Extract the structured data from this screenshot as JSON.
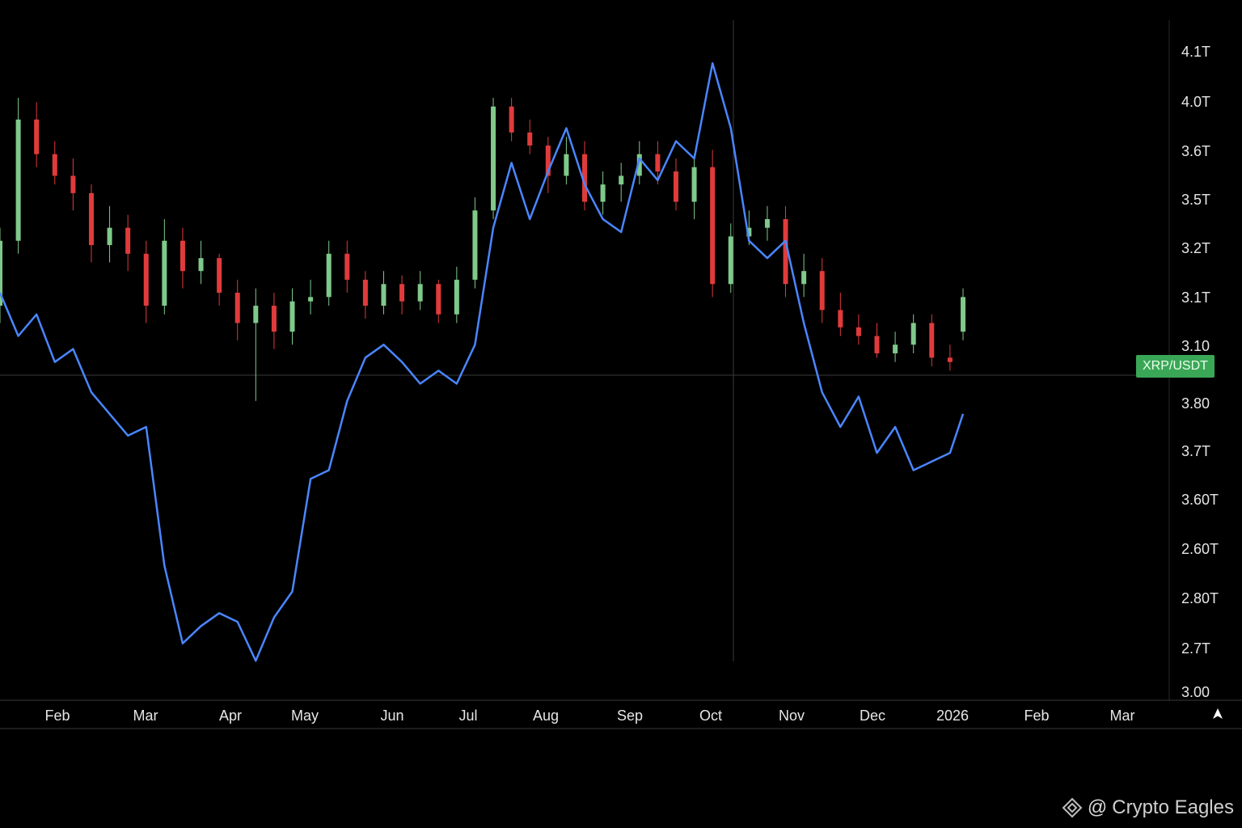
{
  "chart_data": {
    "type": "candlestick+line",
    "y_ticks": [
      "4.1T",
      "4.0T",
      "3.6T",
      "3.5T",
      "3.2T",
      "3.1T",
      "3.10",
      "3.80",
      "3.7T",
      "3.60T",
      "2.60T",
      "2.80T",
      "2.7T",
      "3.00"
    ],
    "x_ticks": [
      "Feb",
      "Mar",
      "Apr",
      "May",
      "Jun",
      "Jul",
      "Aug",
      "Sep",
      "Oct",
      "Nov",
      "Dec",
      "2026",
      "Feb",
      "Mar"
    ],
    "price_label": "XRP/USDT",
    "colors": {
      "background": "#000000",
      "up": "#7fc98a",
      "down": "#e03b3b",
      "line": "#4a86ff",
      "axis": "#555555",
      "price_tag": "#3aa757"
    },
    "grid": false,
    "line_series": {
      "dates": [
        "2025-01-01",
        "2025-01-08",
        "2025-01-15",
        "2025-01-22",
        "2025-01-29",
        "2025-02-05",
        "2025-02-12",
        "2025-02-19",
        "2025-02-26",
        "2025-03-05",
        "2025-03-12",
        "2025-03-19",
        "2025-03-26",
        "2025-04-02",
        "2025-04-09",
        "2025-04-16",
        "2025-04-23",
        "2025-04-30",
        "2025-05-07",
        "2025-05-14",
        "2025-05-21",
        "2025-05-28",
        "2025-06-04",
        "2025-06-11",
        "2025-06-18",
        "2025-06-25",
        "2025-07-02",
        "2025-07-09",
        "2025-07-16",
        "2025-07-23",
        "2025-07-30",
        "2025-08-06",
        "2025-08-13",
        "2025-08-20",
        "2025-08-27",
        "2025-09-03",
        "2025-09-10",
        "2025-09-17",
        "2025-09-24",
        "2025-10-01",
        "2025-10-08",
        "2025-10-15",
        "2025-10-22",
        "2025-10-29",
        "2025-11-05",
        "2025-11-12",
        "2025-11-19",
        "2025-11-26",
        "2025-12-03",
        "2025-12-10",
        "2025-12-17",
        "2025-12-24",
        "2025-12-31",
        "2026-01-05"
      ],
      "values": [
        3.43,
        3.33,
        3.38,
        3.27,
        3.3,
        3.2,
        3.15,
        3.1,
        3.12,
        2.8,
        2.62,
        2.66,
        2.69,
        2.67,
        2.58,
        2.68,
        2.74,
        3.0,
        3.02,
        3.18,
        3.28,
        3.31,
        3.27,
        3.22,
        3.25,
        3.22,
        3.31,
        3.58,
        3.73,
        3.6,
        3.71,
        3.81,
        3.68,
        3.6,
        3.57,
        3.74,
        3.69,
        3.78,
        3.74,
        3.96,
        3.81,
        3.55,
        3.51,
        3.55,
        3.36,
        3.2,
        3.12,
        3.19,
        3.06,
        3.12,
        3.02,
        3.04,
        3.06,
        3.15
      ]
    },
    "candle_series": {
      "dates": [
        "2025-01-01",
        "2025-01-08",
        "2025-01-15",
        "2025-01-22",
        "2025-01-29",
        "2025-02-05",
        "2025-02-12",
        "2025-02-19",
        "2025-02-26",
        "2025-03-05",
        "2025-03-12",
        "2025-03-19",
        "2025-03-26",
        "2025-04-02",
        "2025-04-09",
        "2025-04-16",
        "2025-04-23",
        "2025-04-30",
        "2025-05-07",
        "2025-05-14",
        "2025-05-21",
        "2025-05-28",
        "2025-06-04",
        "2025-06-11",
        "2025-06-18",
        "2025-06-25",
        "2025-07-02",
        "2025-07-09",
        "2025-07-16",
        "2025-07-23",
        "2025-07-30",
        "2025-08-06",
        "2025-08-13",
        "2025-08-20",
        "2025-08-27",
        "2025-09-03",
        "2025-09-10",
        "2025-09-17",
        "2025-09-24",
        "2025-10-01",
        "2025-10-08",
        "2025-10-15",
        "2025-10-22",
        "2025-10-29",
        "2025-11-05",
        "2025-11-12",
        "2025-11-19",
        "2025-11-26",
        "2025-12-03",
        "2025-12-10",
        "2025-12-17",
        "2025-12-24",
        "2025-12-31",
        "2026-01-05"
      ],
      "open": [
        3.4,
        3.55,
        3.83,
        3.75,
        3.7,
        3.66,
        3.54,
        3.58,
        3.52,
        3.4,
        3.55,
        3.48,
        3.51,
        3.43,
        3.36,
        3.4,
        3.34,
        3.41,
        3.42,
        3.52,
        3.46,
        3.4,
        3.45,
        3.41,
        3.45,
        3.38,
        3.46,
        3.62,
        3.86,
        3.8,
        3.77,
        3.7,
        3.75,
        3.64,
        3.68,
        3.7,
        3.75,
        3.71,
        3.64,
        3.72,
        3.45,
        3.56,
        3.58,
        3.6,
        3.45,
        3.48,
        3.39,
        3.35,
        3.33,
        3.29,
        3.31,
        3.36,
        3.28,
        3.34
      ],
      "close": [
        3.55,
        3.83,
        3.75,
        3.7,
        3.66,
        3.54,
        3.58,
        3.52,
        3.4,
        3.55,
        3.48,
        3.51,
        3.43,
        3.36,
        3.4,
        3.34,
        3.41,
        3.42,
        3.52,
        3.46,
        3.4,
        3.45,
        3.41,
        3.45,
        3.38,
        3.46,
        3.62,
        3.86,
        3.8,
        3.77,
        3.7,
        3.75,
        3.64,
        3.68,
        3.7,
        3.75,
        3.71,
        3.64,
        3.72,
        3.45,
        3.56,
        3.58,
        3.6,
        3.45,
        3.48,
        3.39,
        3.35,
        3.33,
        3.29,
        3.31,
        3.36,
        3.28,
        3.27,
        3.42
      ],
      "high": [
        3.58,
        3.88,
        3.87,
        3.78,
        3.74,
        3.68,
        3.63,
        3.61,
        3.55,
        3.6,
        3.58,
        3.55,
        3.52,
        3.46,
        3.44,
        3.43,
        3.44,
        3.46,
        3.55,
        3.55,
        3.48,
        3.48,
        3.47,
        3.48,
        3.46,
        3.49,
        3.65,
        3.88,
        3.88,
        3.83,
        3.79,
        3.79,
        3.78,
        3.71,
        3.73,
        3.78,
        3.78,
        3.74,
        3.75,
        3.76,
        3.59,
        3.62,
        3.63,
        3.63,
        3.52,
        3.51,
        3.43,
        3.38,
        3.36,
        3.34,
        3.38,
        3.38,
        3.31,
        3.44
      ],
      "low": [
        3.36,
        3.52,
        3.72,
        3.68,
        3.62,
        3.5,
        3.5,
        3.48,
        3.36,
        3.38,
        3.44,
        3.45,
        3.4,
        3.32,
        3.18,
        3.3,
        3.31,
        3.38,
        3.4,
        3.43,
        3.37,
        3.38,
        3.38,
        3.39,
        3.36,
        3.36,
        3.44,
        3.6,
        3.78,
        3.75,
        3.66,
        3.68,
        3.62,
        3.61,
        3.64,
        3.68,
        3.68,
        3.62,
        3.6,
        3.42,
        3.43,
        3.54,
        3.55,
        3.42,
        3.42,
        3.36,
        3.33,
        3.31,
        3.28,
        3.27,
        3.29,
        3.26,
        3.25,
        3.32
      ]
    }
  },
  "watermark": {
    "at": "@",
    "text": "Crypto Eagles"
  }
}
